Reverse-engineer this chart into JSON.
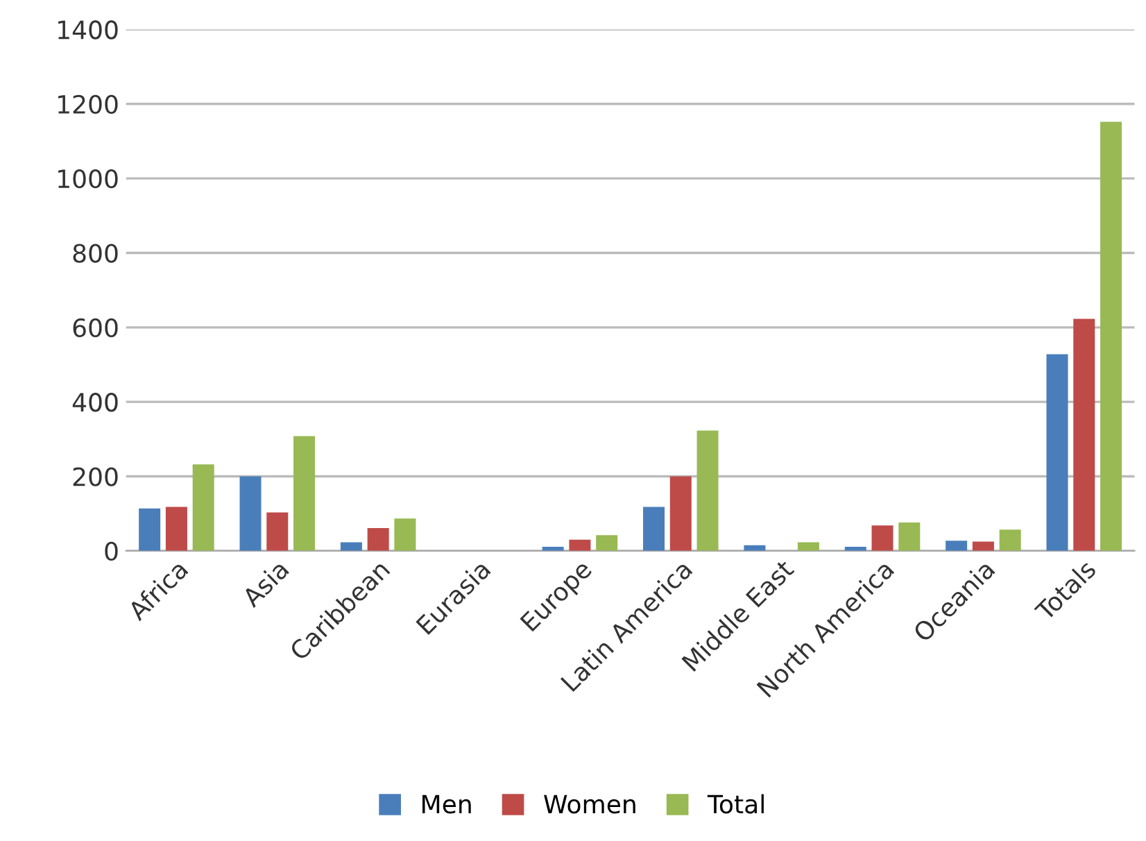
{
  "chart_data": {
    "type": "bar",
    "categories": [
      "Africa",
      "Asia",
      "Caribbean",
      "Eurasia",
      "Europe",
      "Latin America",
      "Middle East",
      "North America",
      "Oceania",
      "Totals"
    ],
    "series": [
      {
        "name": "Men",
        "color": "#4a7ebb",
        "values": [
          114,
          200,
          23,
          0,
          11,
          118,
          15,
          11,
          27,
          528
        ]
      },
      {
        "name": "Women",
        "color": "#be4b48",
        "values": [
          118,
          103,
          61,
          0,
          30,
          200,
          0,
          68,
          25,
          623
        ]
      },
      {
        "name": "Total",
        "color": "#98b954",
        "values": [
          232,
          308,
          87,
          0,
          42,
          323,
          23,
          76,
          57,
          1152
        ]
      }
    ],
    "ylim": [
      0,
      1400
    ],
    "yticks": [
      0,
      200,
      400,
      600,
      800,
      1000,
      1200,
      1400
    ],
    "grid": "y",
    "legend": "bottom"
  }
}
